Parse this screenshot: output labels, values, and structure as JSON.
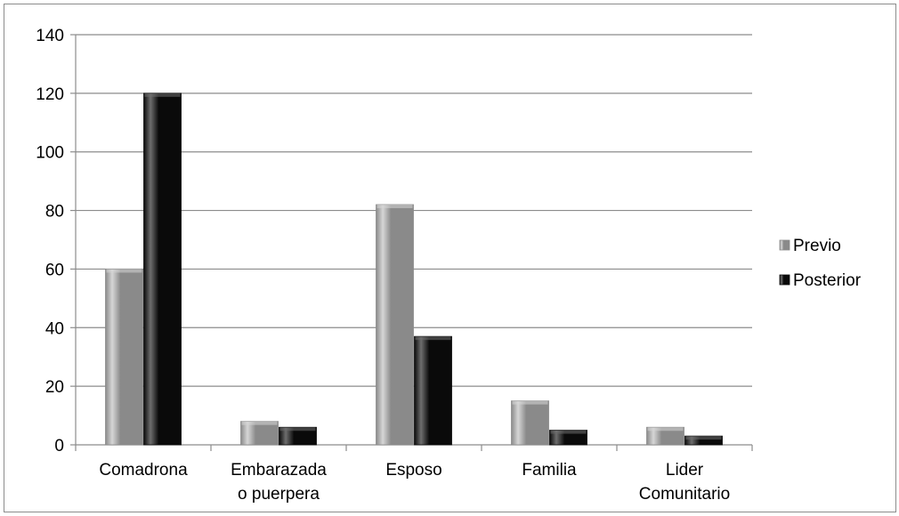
{
  "chart_data": {
    "type": "bar",
    "categories": [
      [
        "Comadrona"
      ],
      [
        "Embarazada",
        "o puerpera"
      ],
      [
        "Esposo"
      ],
      [
        "Familia"
      ],
      [
        "Lider",
        "Comunitario"
      ]
    ],
    "series": [
      {
        "name": "Previo",
        "values": [
          60,
          8,
          82,
          15,
          6
        ],
        "color": "#8a8a8a",
        "highlight": "#d6d6d6"
      },
      {
        "name": "Posterior",
        "values": [
          120,
          6,
          37,
          5,
          3
        ],
        "color": "#0a0a0a",
        "highlight": "#6e6e6e"
      }
    ],
    "ylim": [
      0,
      140
    ],
    "yticks": [
      0,
      20,
      40,
      60,
      80,
      100,
      120,
      140
    ],
    "grid": true,
    "legend": "right",
    "title": "",
    "xlabel": "",
    "ylabel": ""
  }
}
